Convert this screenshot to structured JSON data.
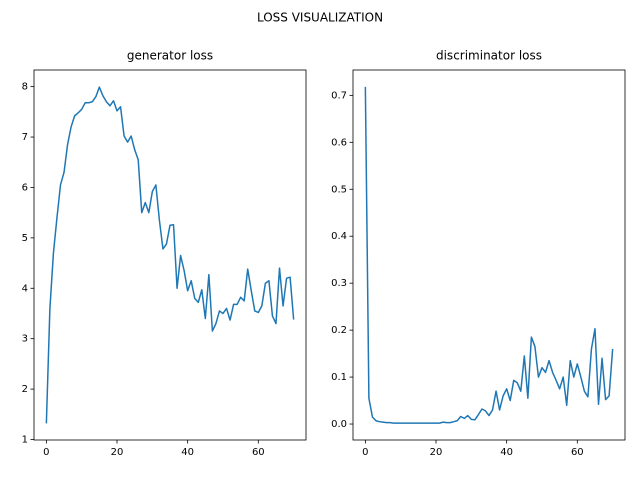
{
  "title": "LOSS VISUALIZATION",
  "chart_data": [
    {
      "type": "line",
      "title": "generator loss",
      "x": [
        0,
        1,
        2,
        3,
        4,
        5,
        6,
        7,
        8,
        9,
        10,
        11,
        12,
        13,
        14,
        15,
        16,
        17,
        18,
        19,
        20,
        21,
        22,
        23,
        24,
        25,
        26,
        27,
        28,
        29,
        30,
        31,
        32,
        33,
        34,
        35,
        36,
        37,
        38,
        39,
        40,
        41,
        42,
        43,
        44,
        45,
        46,
        47,
        48,
        49,
        50,
        51,
        52,
        53,
        54,
        55,
        56,
        57,
        58,
        59,
        60,
        61,
        62,
        63,
        64,
        65,
        66,
        67,
        68,
        69,
        70
      ],
      "series": [
        {
          "color": "#1f77b4",
          "values": [
            1.32,
            3.6,
            4.7,
            5.4,
            6.05,
            6.3,
            6.85,
            7.2,
            7.42,
            7.48,
            7.55,
            7.68,
            7.68,
            7.7,
            7.8,
            7.99,
            7.82,
            7.7,
            7.62,
            7.72,
            7.52,
            7.6,
            7.02,
            6.9,
            7.02,
            6.75,
            6.55,
            5.5,
            5.7,
            5.5,
            5.92,
            6.05,
            5.35,
            4.78,
            4.88,
            5.25,
            5.26,
            4.0,
            4.65,
            4.35,
            3.95,
            4.15,
            3.8,
            3.72,
            3.97,
            3.4,
            4.27,
            3.15,
            3.3,
            3.55,
            3.5,
            3.6,
            3.37,
            3.68,
            3.68,
            3.82,
            3.75,
            4.38,
            3.95,
            3.55,
            3.52,
            3.65,
            4.1,
            4.15,
            3.45,
            3.3,
            4.4,
            3.65,
            4.2,
            4.22,
            3.38
          ]
        }
      ],
      "xlim": [
        -3.5,
        73.5
      ],
      "xticks": [
        0,
        20,
        40,
        60
      ],
      "ylim": [
        0.99,
        8.33
      ],
      "yticks": [
        1,
        2,
        3,
        4,
        5,
        6,
        7,
        8
      ]
    },
    {
      "type": "line",
      "title": "discriminator loss",
      "x": [
        0,
        1,
        2,
        3,
        4,
        5,
        6,
        7,
        8,
        9,
        10,
        11,
        12,
        13,
        14,
        15,
        16,
        17,
        18,
        19,
        20,
        21,
        22,
        23,
        24,
        25,
        26,
        27,
        28,
        29,
        30,
        31,
        32,
        33,
        34,
        35,
        36,
        37,
        38,
        39,
        40,
        41,
        42,
        43,
        44,
        45,
        46,
        47,
        48,
        49,
        50,
        51,
        52,
        53,
        54,
        55,
        56,
        57,
        58,
        59,
        60,
        61,
        62,
        63,
        64,
        65,
        66,
        67,
        68,
        69,
        70
      ],
      "series": [
        {
          "color": "#1f77b4",
          "values": [
            0.718,
            0.055,
            0.015,
            0.007,
            0.005,
            0.004,
            0.003,
            0.003,
            0.002,
            0.002,
            0.002,
            0.002,
            0.002,
            0.002,
            0.002,
            0.002,
            0.002,
            0.002,
            0.002,
            0.002,
            0.002,
            0.002,
            0.004,
            0.003,
            0.003,
            0.005,
            0.007,
            0.016,
            0.012,
            0.018,
            0.01,
            0.009,
            0.02,
            0.032,
            0.028,
            0.018,
            0.03,
            0.07,
            0.03,
            0.06,
            0.075,
            0.05,
            0.093,
            0.088,
            0.07,
            0.145,
            0.055,
            0.185,
            0.165,
            0.1,
            0.12,
            0.11,
            0.135,
            0.11,
            0.093,
            0.075,
            0.1,
            0.04,
            0.135,
            0.1,
            0.128,
            0.1,
            0.07,
            0.058,
            0.16,
            0.203,
            0.042,
            0.14,
            0.052,
            0.06,
            0.16
          ]
        }
      ],
      "xlim": [
        -3.5,
        73.5
      ],
      "xticks": [
        0,
        20,
        40,
        60
      ],
      "ylim": [
        -0.034,
        0.754
      ],
      "yticks": [
        {
          "value": 0,
          "label": "0.0"
        },
        0.1,
        0.2,
        0.3,
        0.4,
        0.5,
        0.6,
        0.7
      ]
    }
  ]
}
